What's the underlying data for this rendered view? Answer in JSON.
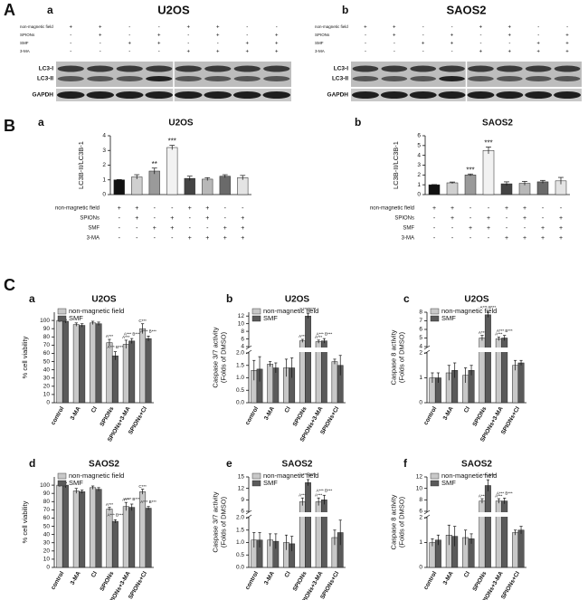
{
  "sections": [
    "A",
    "B",
    "C"
  ],
  "blots": [
    {
      "panel": "a",
      "title": "U2OS",
      "rows": [
        {
          "name": "non-magnetic field",
          "signs": [
            "+",
            "+",
            "-",
            "-",
            "+",
            "+",
            "-",
            "-"
          ]
        },
        {
          "name": "SPIONs",
          "signs": [
            "-",
            "+",
            "-",
            "+",
            "-",
            "+",
            "-",
            "+"
          ]
        },
        {
          "name": "SMF",
          "signs": [
            "-",
            "-",
            "+",
            "+",
            "-",
            "-",
            "+",
            "+"
          ]
        },
        {
          "name": "3-MA",
          "signs": [
            "-",
            "-",
            "-",
            "-",
            "+",
            "+",
            "+",
            "+"
          ]
        }
      ],
      "bands": [
        "LC3-I",
        "LC3-II",
        "GAPDH"
      ]
    },
    {
      "panel": "b",
      "title": "SAOS2",
      "rows": [
        {
          "name": "non-magnetic field",
          "signs": [
            "+",
            "+",
            "-",
            "-",
            "+",
            "+",
            "-",
            "-"
          ]
        },
        {
          "name": "SPIONs",
          "signs": [
            "-",
            "+",
            "-",
            "+",
            "-",
            "+",
            "-",
            "+"
          ]
        },
        {
          "name": "SMF",
          "signs": [
            "-",
            "-",
            "+",
            "+",
            "-",
            "-",
            "+",
            "+"
          ]
        },
        {
          "name": "3-MA",
          "signs": [
            "-",
            "-",
            "-",
            "-",
            "+",
            "+",
            "+",
            "+"
          ]
        }
      ],
      "bands": [
        "LC3-I",
        "LC3-II",
        "GAPDH"
      ]
    }
  ],
  "chart_data": [
    {
      "type": "bar",
      "panel": "a",
      "title": "U2OS",
      "y_label": [
        "LC3B-II/LC3B-1"
      ],
      "values": [
        1.0,
        1.2,
        1.6,
        3.2,
        1.1,
        1.05,
        1.25,
        1.15
      ],
      "errors": [
        0.02,
        0.15,
        0.2,
        0.15,
        0.15,
        0.1,
        0.1,
        0.15
      ],
      "annotations": [
        null,
        null,
        "**",
        "***",
        null,
        null,
        null,
        null
      ],
      "colors": [
        "#111111",
        "#d0d0d0",
        "#9a9a9a",
        "#f2f2f2",
        "#444444",
        "#b8b8b8",
        "#6a6a6a",
        "#e4e4e4"
      ],
      "ylim": [
        0,
        4
      ],
      "yticks": [
        0,
        1,
        2,
        3,
        4
      ],
      "condition_rows": [
        {
          "name": "non-magnetic field",
          "signs": [
            "+",
            "+",
            "-",
            "-",
            "+",
            "+",
            "-",
            "-"
          ]
        },
        {
          "name": "SPIONs",
          "signs": [
            "-",
            "+",
            "-",
            "+",
            "-",
            "+",
            "-",
            "+"
          ]
        },
        {
          "name": "SMF",
          "signs": [
            "-",
            "-",
            "+",
            "+",
            "-",
            "-",
            "+",
            "+"
          ]
        },
        {
          "name": "3-MA",
          "signs": [
            "-",
            "-",
            "-",
            "-",
            "+",
            "+",
            "+",
            "+"
          ]
        }
      ]
    },
    {
      "type": "bar",
      "panel": "b",
      "title": "SAOS2",
      "y_label": [
        "LC3B-II/LC3B-1"
      ],
      "values": [
        1.0,
        1.2,
        2.0,
        4.5,
        1.1,
        1.15,
        1.3,
        1.4
      ],
      "errors": [
        0.02,
        0.08,
        0.1,
        0.35,
        0.2,
        0.2,
        0.15,
        0.35
      ],
      "annotations": [
        null,
        null,
        "***",
        "***",
        null,
        null,
        null,
        null
      ],
      "colors": [
        "#111111",
        "#d0d0d0",
        "#9a9a9a",
        "#f2f2f2",
        "#444444",
        "#b8b8b8",
        "#6a6a6a",
        "#e4e4e4"
      ],
      "ylim": [
        0,
        6
      ],
      "yticks": [
        0,
        1,
        2,
        3,
        4,
        5,
        6
      ],
      "condition_rows": [
        {
          "name": "non-magnetic field",
          "signs": [
            "+",
            "+",
            "-",
            "-",
            "+",
            "+",
            "-",
            "-"
          ]
        },
        {
          "name": "SPIONs",
          "signs": [
            "-",
            "+",
            "-",
            "+",
            "-",
            "+",
            "-",
            "+"
          ]
        },
        {
          "name": "SMF",
          "signs": [
            "-",
            "-",
            "+",
            "+",
            "-",
            "-",
            "+",
            "+"
          ]
        },
        {
          "name": "3-MA",
          "signs": [
            "-",
            "-",
            "-",
            "-",
            "+",
            "+",
            "+",
            "+"
          ]
        }
      ]
    },
    {
      "type": "grouped_bar",
      "panel": "a",
      "title": "U2OS",
      "y_label": [
        "% cell viability"
      ],
      "categories": [
        "control",
        "3-MA",
        "CI",
        "SPIONs",
        "SPIONs+3-MA",
        "SPIONs+CI"
      ],
      "series": [
        {
          "name": "non-magnetic field",
          "color": "#c8c8c8",
          "values": [
            100,
            95,
            97,
            73,
            71,
            90
          ],
          "errors": [
            2,
            2,
            2,
            4,
            5,
            6
          ],
          "annotations": [
            null,
            null,
            null,
            "A***",
            "A***",
            "C***"
          ]
        },
        {
          "name": "SMF",
          "color": "#5a5a5a",
          "values": [
            99,
            94,
            96,
            57,
            75,
            78
          ],
          "errors": [
            2,
            2,
            2,
            5,
            3,
            3
          ],
          "annotations": [
            null,
            null,
            null,
            "A*** B***",
            "A*** B***",
            "A*** B***"
          ]
        }
      ],
      "ylim": [
        0,
        110
      ],
      "yticks": [
        0,
        10,
        20,
        30,
        40,
        50,
        60,
        70,
        80,
        90,
        100
      ]
    },
    {
      "type": "grouped_bar",
      "panel": "b",
      "title": "U2OS",
      "y_label": [
        "Caspase 3/7 activity",
        "(Folds of DMSO)"
      ],
      "categories": [
        "control",
        "3-MA",
        "CI",
        "SPIONs",
        "SPIONs+3-MA",
        "SPIONs+CI"
      ],
      "series": [
        {
          "name": "non-magnetic field",
          "color": "#c8c8c8",
          "values": [
            1.3,
            1.55,
            1.4,
            5.5,
            5.3,
            1.65
          ],
          "errors": [
            0.4,
            0.1,
            0.35,
            0.4,
            0.4,
            0.1
          ],
          "annotations": [
            null,
            null,
            null,
            "A***",
            "A***",
            null
          ]
        },
        {
          "name": "SMF",
          "color": "#5a5a5a",
          "values": [
            1.35,
            1.4,
            1.4,
            12,
            5.5,
            1.5
          ],
          "errors": [
            0.5,
            0.2,
            0.4,
            0.6,
            0.6,
            0.4
          ],
          "annotations": [
            null,
            null,
            null,
            "A*** B***",
            "A*** B***",
            null
          ]
        }
      ],
      "ylim": [
        0,
        13
      ],
      "axis_break": [
        2,
        4
      ],
      "yticks": [
        {
          "value": 0,
          "label": "0.0"
        },
        {
          "value": 0.5,
          "label": "0.5"
        },
        {
          "value": 1,
          "label": "1.0"
        },
        {
          "value": 1.5,
          "label": "1.5"
        },
        {
          "value": 2,
          "label": "2.0"
        },
        4,
        6,
        8,
        10,
        12
      ]
    },
    {
      "type": "grouped_bar",
      "panel": "c",
      "title": "U2OS",
      "y_label": [
        "Caspase 8 activity",
        "(Folds of DMSO)"
      ],
      "categories": [
        "control",
        "3-MA",
        "CI",
        "SPIONs",
        "SPIONs+3-MA",
        "SPIONs+CI"
      ],
      "series": [
        {
          "name": "non-magnetic field",
          "color": "#c8c8c8",
          "values": [
            1.0,
            1.2,
            1.1,
            5.0,
            4.9,
            1.5
          ],
          "errors": [
            0.2,
            0.3,
            0.3,
            0.3,
            0.2,
            0.2
          ],
          "annotations": [
            null,
            null,
            null,
            "A***",
            "A***",
            null
          ]
        },
        {
          "name": "SMF",
          "color": "#5a5a5a",
          "values": [
            1.0,
            1.3,
            1.3,
            7.7,
            5.0,
            1.6
          ],
          "errors": [
            0.2,
            0.3,
            0.2,
            0.3,
            0.3,
            0.1
          ],
          "annotations": [
            null,
            null,
            null,
            "A*** B***",
            "A*** B***",
            null
          ]
        }
      ],
      "ylim": [
        0,
        8
      ],
      "axis_break": [
        2,
        4
      ],
      "yticks": [
        0,
        1,
        2,
        4,
        5,
        6,
        7,
        8
      ]
    },
    {
      "type": "grouped_bar",
      "panel": "d",
      "title": "SAOS2",
      "y_label": [
        "% cell viability"
      ],
      "categories": [
        "control",
        "3-MA",
        "CI",
        "SPIONs",
        "SPIONs+3-MA",
        "SPIONs+CI"
      ],
      "series": [
        {
          "name": "non-magnetic field",
          "color": "#c8c8c8",
          "values": [
            100,
            93,
            97,
            71,
            74,
            92
          ],
          "errors": [
            2,
            3,
            2,
            2,
            5,
            3
          ],
          "annotations": [
            null,
            null,
            null,
            "A***",
            "A***",
            "C***"
          ]
        },
        {
          "name": "SMF",
          "color": "#5a5a5a",
          "values": [
            100,
            92,
            95,
            56,
            73,
            72
          ],
          "errors": [
            3,
            2,
            2,
            2,
            4,
            2
          ],
          "annotations": [
            null,
            null,
            null,
            "A*** B***",
            "A*** B***",
            "A*** B***"
          ]
        }
      ],
      "ylim": [
        0,
        110
      ],
      "yticks": [
        0,
        10,
        20,
        30,
        40,
        50,
        60,
        70,
        80,
        90,
        100
      ]
    },
    {
      "type": "grouped_bar",
      "panel": "e",
      "title": "SAOS2",
      "y_label": [
        "Caspase 3/7 activity",
        "(Folds of DMSO)"
      ],
      "categories": [
        "control",
        "3-MA",
        "CI",
        "SPIONs",
        "SPIONs+3-MA",
        "SPIONs+CI"
      ],
      "series": [
        {
          "name": "non-magnetic field",
          "color": "#c8c8c8",
          "values": [
            1.1,
            1.1,
            1.0,
            8.5,
            8.5,
            1.2
          ],
          "errors": [
            0.3,
            0.25,
            0.3,
            1.0,
            1.0,
            0.3
          ],
          "annotations": [
            null,
            null,
            null,
            "A***",
            "A***",
            null
          ]
        },
        {
          "name": "SMF",
          "color": "#5a5a5a",
          "values": [
            1.1,
            1.05,
            0.95,
            13.5,
            9,
            1.4
          ],
          "errors": [
            0.3,
            0.3,
            0.3,
            0.8,
            1.2,
            0.5
          ],
          "annotations": [
            null,
            null,
            null,
            "A*** B***",
            "A*** B***",
            null
          ]
        }
      ],
      "ylim": [
        0,
        15
      ],
      "axis_break": [
        2,
        6
      ],
      "yticks": [
        {
          "value": 0,
          "label": "0.0"
        },
        {
          "value": 0.5,
          "label": "0.5"
        },
        {
          "value": 1,
          "label": "1.0"
        },
        {
          "value": 1.5,
          "label": "1.5"
        },
        {
          "value": 2,
          "label": "2.0"
        },
        6,
        9,
        12,
        15
      ]
    },
    {
      "type": "grouped_bar",
      "panel": "f",
      "title": "SAOS2",
      "y_label": [
        "Caspase 8 activity",
        "(Folds of DMSO)"
      ],
      "categories": [
        "control",
        "3-MA",
        "CI",
        "SPIONs",
        "SPIONs+3-MA",
        "SPIONs+CI"
      ],
      "series": [
        {
          "name": "non-magnetic field",
          "color": "#c8c8c8",
          "values": [
            1.0,
            1.3,
            1.2,
            7.8,
            7.8,
            1.4
          ],
          "errors": [
            0.15,
            0.4,
            0.3,
            0.4,
            0.4,
            0.1
          ],
          "annotations": [
            null,
            null,
            null,
            "A***",
            "A***",
            null
          ]
        },
        {
          "name": "SMF",
          "color": "#5a5a5a",
          "values": [
            1.1,
            1.25,
            1.15,
            10.5,
            7.8,
            1.5
          ],
          "errors": [
            0.2,
            0.4,
            0.2,
            1.0,
            0.5,
            0.15
          ],
          "annotations": [
            null,
            null,
            null,
            "A*** B***",
            "A*** B***",
            null
          ]
        }
      ],
      "ylim": [
        0,
        12
      ],
      "axis_break": [
        2,
        6
      ],
      "yticks": [
        0,
        1,
        2,
        6,
        8,
        10,
        12
      ]
    }
  ]
}
